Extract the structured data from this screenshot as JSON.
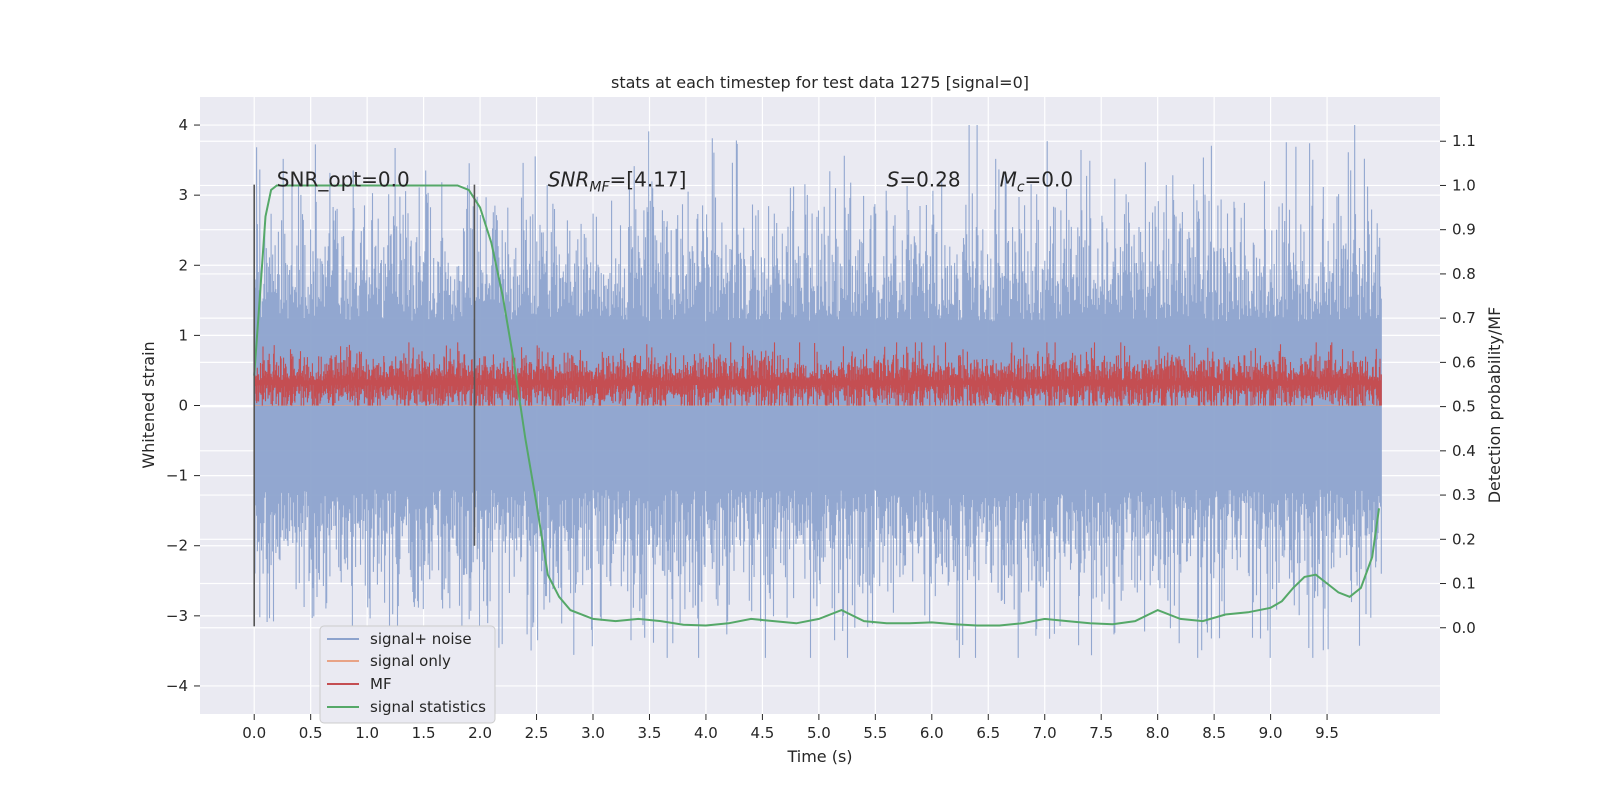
{
  "chart_data": {
    "type": "line",
    "title": "stats at each timestep for test data 1275 [signal=0]",
    "xlabel": "Time (s)",
    "ylabel": "Whitened strain",
    "y2label": "Detection probability/MF",
    "xlim": [
      -0.48,
      10.5
    ],
    "ylim": [
      -4.4,
      4.4
    ],
    "y2lim": [
      -0.195,
      1.2
    ],
    "x_ticks": [
      "0.0",
      "0.5",
      "1.0",
      "1.5",
      "2.0",
      "2.5",
      "3.0",
      "3.5",
      "4.0",
      "4.5",
      "5.0",
      "5.5",
      "6.0",
      "6.5",
      "7.0",
      "7.5",
      "8.0",
      "8.5",
      "9.0",
      "9.5"
    ],
    "y_ticks": [
      "4",
      "3",
      "2",
      "1",
      "0",
      "−1",
      "−2",
      "−3",
      "−4"
    ],
    "y2_ticks": [
      "1.1",
      "1.0",
      "0.9",
      "0.8",
      "0.7",
      "0.6",
      "0.5",
      "0.4",
      "0.3",
      "0.2",
      "0.1",
      "0.0"
    ],
    "grid": true,
    "legend_position": "lower-left",
    "series": [
      {
        "name": "signal+ noise",
        "color": "#8da3cd",
        "axis": "left",
        "description_range": [
          -3.6,
          4.0
        ],
        "x_range": [
          0.0,
          9.98
        ]
      },
      {
        "name": "signal only",
        "color": "#e8a386",
        "axis": "left",
        "x_range": [
          0.0,
          9.98
        ],
        "values_constant": 0.0
      },
      {
        "name": "MF",
        "color": "#c44e52",
        "axis": "left",
        "x_range": [
          0.0,
          9.98
        ],
        "band_range": [
          0.0,
          0.9
        ]
      },
      {
        "name": "signal statistics",
        "color": "#55a868",
        "axis": "right",
        "x": [
          0.0,
          0.05,
          0.1,
          0.15,
          0.2,
          0.3,
          0.5,
          1.0,
          1.5,
          1.8,
          1.9,
          2.0,
          2.1,
          2.2,
          2.3,
          2.4,
          2.5,
          2.6,
          2.7,
          2.8,
          3.0,
          3.2,
          3.4,
          3.6,
          3.8,
          4.0,
          4.2,
          4.4,
          4.6,
          4.8,
          5.0,
          5.2,
          5.4,
          5.6,
          5.8,
          6.0,
          6.2,
          6.4,
          6.6,
          6.8,
          7.0,
          7.2,
          7.4,
          7.6,
          7.8,
          8.0,
          8.2,
          8.4,
          8.6,
          8.8,
          9.0,
          9.1,
          9.2,
          9.3,
          9.4,
          9.5,
          9.6,
          9.7,
          9.8,
          9.9,
          9.96
        ],
        "y": [
          0.57,
          0.75,
          0.93,
          0.99,
          1.0,
          1.0,
          1.0,
          1.0,
          1.0,
          1.0,
          0.99,
          0.95,
          0.87,
          0.75,
          0.6,
          0.43,
          0.28,
          0.12,
          0.07,
          0.04,
          0.02,
          0.015,
          0.02,
          0.015,
          0.007,
          0.005,
          0.01,
          0.02,
          0.015,
          0.01,
          0.02,
          0.04,
          0.015,
          0.01,
          0.01,
          0.012,
          0.008,
          0.005,
          0.005,
          0.01,
          0.02,
          0.015,
          0.01,
          0.008,
          0.015,
          0.04,
          0.02,
          0.015,
          0.03,
          0.035,
          0.045,
          0.06,
          0.09,
          0.115,
          0.12,
          0.1,
          0.08,
          0.07,
          0.09,
          0.16,
          0.27
        ]
      }
    ],
    "markers": [
      {
        "x": 0.0,
        "y_range": [
          -3.15,
          3.15
        ]
      },
      {
        "x": 1.95,
        "y_range": [
          -2.0,
          3.15
        ]
      }
    ],
    "annotations": [
      {
        "id": "snr-opt",
        "text": "SNR_opt=0.0",
        "x": 0.2,
        "y2": 1.0
      },
      {
        "id": "snr-mf",
        "prefix": "SNR",
        "sub": "MF",
        "suffix": "=[4.17]",
        "x": 2.6,
        "y2": 1.0
      },
      {
        "id": "s-stat",
        "prefix": "S",
        "suffix": "=0.28",
        "x": 5.6,
        "y2": 1.0
      },
      {
        "id": "mc",
        "prefix": "M",
        "sub": "c",
        "suffix": "=0.0",
        "x": 6.6,
        "y2": 1.0
      }
    ]
  }
}
